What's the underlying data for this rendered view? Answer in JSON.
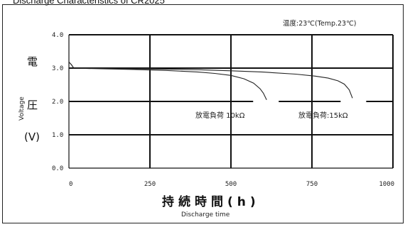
{
  "page": {
    "caption": "Discharge Characteristics of CR2025"
  },
  "chart_data": {
    "type": "line",
    "temperature_note": "温度:23℃(Temp.23℃)",
    "ylabel_jp_top": "電",
    "ylabel_jp_bottom": "圧",
    "ylabel_en": "Voltage",
    "ylabel_unit": "(V)",
    "xlabel_jp": "持続時間(h)",
    "xlabel_en": "Discharge time",
    "xlim": [
      0,
      1000
    ],
    "ylim": [
      0,
      4.0
    ],
    "x_ticks": [
      0,
      250,
      500,
      750,
      1000
    ],
    "x_tick_labels": [
      "0",
      "250",
      "500",
      "750",
      "1000"
    ],
    "y_ticks": [
      0,
      1.0,
      2.0,
      3.0,
      4.0
    ],
    "y_tick_labels": [
      "0.0",
      "1.0",
      "2.0",
      "3.0",
      "4.0"
    ],
    "grid": true,
    "series": [
      {
        "name": "放電負荷 10kΩ",
        "x": [
          0,
          8,
          15,
          50,
          100,
          200,
          300,
          400,
          450,
          500,
          540,
          570,
          590,
          600,
          610
        ],
        "y": [
          3.18,
          3.1,
          3.0,
          2.99,
          2.98,
          2.96,
          2.93,
          2.88,
          2.84,
          2.78,
          2.68,
          2.55,
          2.38,
          2.25,
          2.05
        ]
      },
      {
        "name": "放電負荷:15kΩ",
        "x": [
          0,
          8,
          15,
          100,
          200,
          300,
          400,
          500,
          600,
          700,
          760,
          800,
          830,
          850,
          865,
          875
        ],
        "y": [
          3.18,
          3.1,
          3.0,
          2.99,
          2.98,
          2.97,
          2.95,
          2.92,
          2.88,
          2.82,
          2.76,
          2.7,
          2.62,
          2.52,
          2.35,
          2.1
        ]
      }
    ]
  }
}
